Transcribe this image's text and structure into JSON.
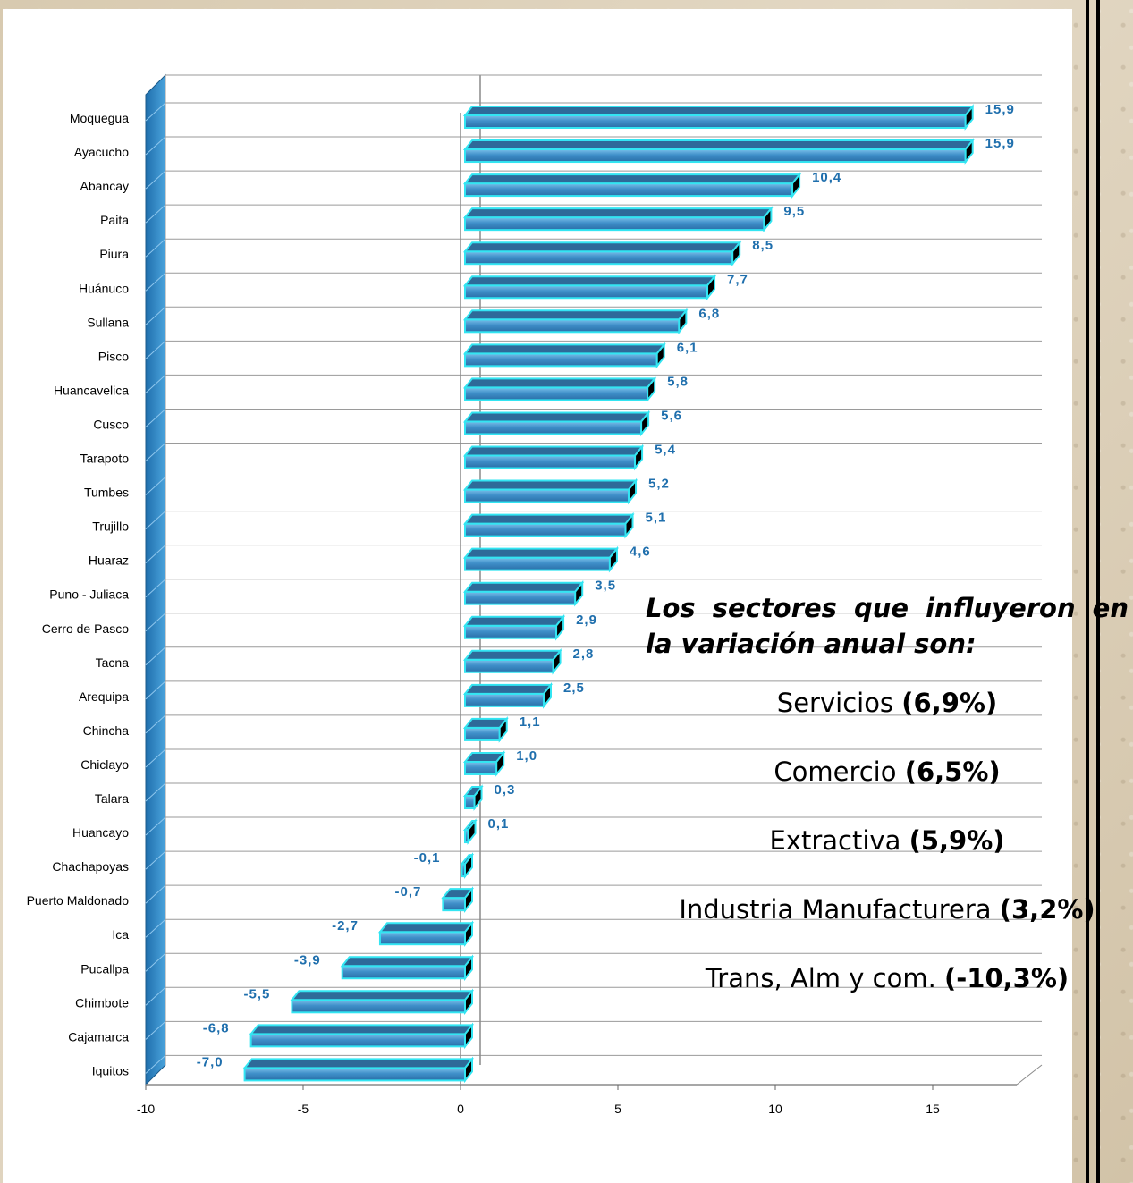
{
  "chart_data": {
    "type": "bar",
    "orientation": "horizontal",
    "categories": [
      "Moquegua",
      "Ayacucho",
      "Abancay",
      "Paita",
      "Piura",
      "Huánuco",
      "Sullana",
      "Pisco",
      "Huancavelica",
      "Cusco",
      "Tarapoto",
      "Tumbes",
      "Trujillo",
      "Huaraz",
      "Puno - Juliaca",
      "Cerro de Pasco",
      "Tacna",
      "Arequipa",
      "Chincha",
      "Chiclayo",
      "Talara",
      "Huancayo",
      "Chachapoyas",
      "Puerto Maldonado",
      "Ica",
      "Pucallpa",
      "Chimbote",
      "Cajamarca",
      "Iquitos"
    ],
    "values": [
      15.9,
      15.9,
      10.4,
      9.5,
      8.5,
      7.7,
      6.8,
      6.1,
      5.8,
      5.6,
      5.4,
      5.2,
      5.1,
      4.6,
      3.5,
      2.9,
      2.8,
      2.5,
      1.1,
      1.0,
      0.3,
      0.1,
      -0.1,
      -0.7,
      -2.7,
      -3.9,
      -5.5,
      -6.8,
      -7.0
    ],
    "value_labels": [
      "15,9",
      "15,9",
      "10,4",
      "9,5",
      "8,5",
      "7,7",
      "6,8",
      "6,1",
      "5,8",
      "5,6",
      "5,4",
      "5,2",
      "5,1",
      "4,6",
      "3,5",
      "2,9",
      "2,8",
      "2,5",
      "1,1",
      "1,0",
      "0,3",
      "0,1",
      "-0,1",
      "-0,7",
      "-2,7",
      "-3,9",
      "-5,5",
      "-6,8",
      "-7,0"
    ],
    "xticks": [
      -10,
      -5,
      0,
      5,
      10,
      15
    ],
    "xlim": [
      -10,
      18
    ],
    "grid": "horizontal",
    "bar_color": "#3f8fc9",
    "bar_edge_color": "#33e5f2",
    "label_color": "#1f6fad",
    "wall_color": "#2f85c4"
  },
  "side_panel": {
    "heading": "Los sectores que influyeron en la variación anual son:",
    "sectors": [
      {
        "name": "Servicios ",
        "value": "(6,9%)"
      },
      {
        "name": "Comercio ",
        "value": "(6,5%)"
      },
      {
        "name": "Extractiva ",
        "value": "(5,9%)"
      },
      {
        "name": "Industria Manufacturera ",
        "value": "(3,2%)"
      },
      {
        "name": "Trans, Alm y com. ",
        "value": "(-10,3%)"
      }
    ]
  }
}
